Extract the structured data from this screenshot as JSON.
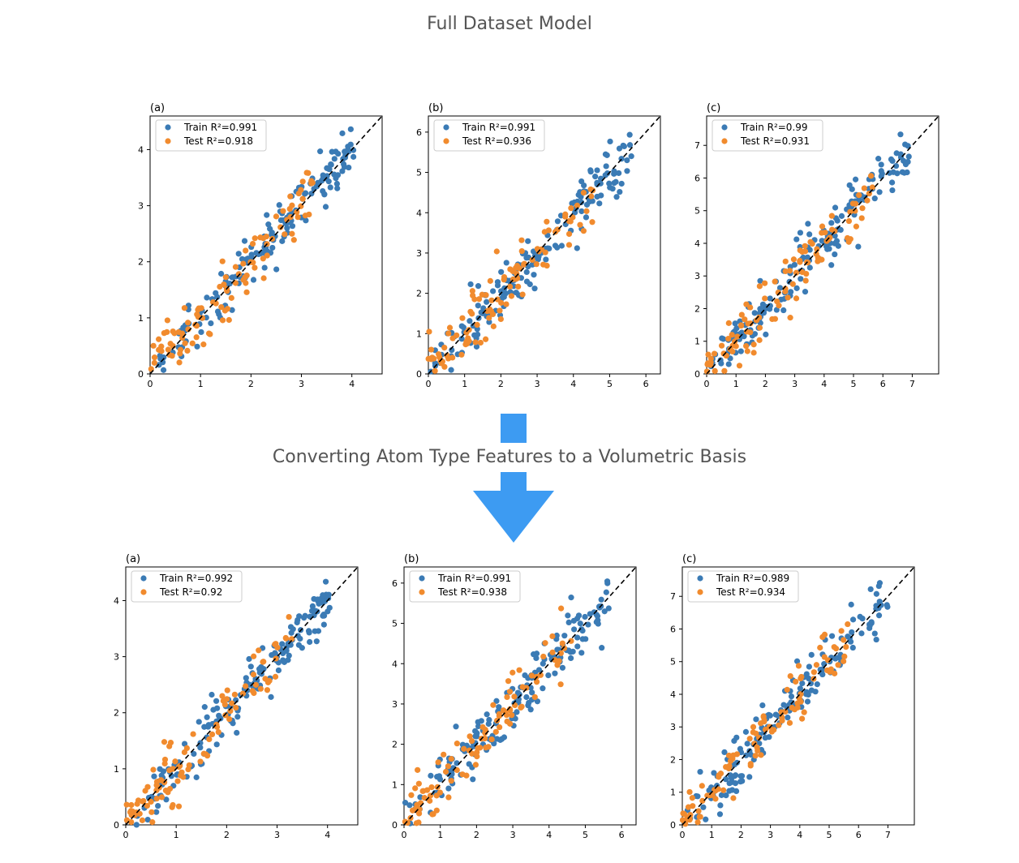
{
  "header": {
    "title": "Full Dataset Model",
    "subtitle": "Converting Atom Type Features to a Volumetric Basis"
  },
  "colors": {
    "train": "#3b7bb5",
    "test": "#f18b2e",
    "arrow": "#3d9bf2",
    "heading": "#555555"
  },
  "chart_data": [
    {
      "type": "scatter",
      "group": "top",
      "label": "(a)",
      "xlim": [
        0,
        4.6
      ],
      "ylim": [
        0,
        4.6
      ],
      "xticks": [
        0,
        1,
        2,
        3,
        4
      ],
      "yticks": [
        0,
        1,
        2,
        3,
        4
      ],
      "grid": false,
      "legend": "top-left",
      "diagonal": "y=x",
      "series": [
        {
          "name": "Train R²=0.991"
        },
        {
          "name": "Test R²=0.918"
        }
      ]
    },
    {
      "type": "scatter",
      "group": "top",
      "label": "(b)",
      "xlim": [
        0,
        6.4
      ],
      "ylim": [
        0,
        6.4
      ],
      "xticks": [
        0,
        1,
        2,
        3,
        4,
        5,
        6
      ],
      "yticks": [
        0,
        1,
        2,
        3,
        4,
        5,
        6
      ],
      "grid": false,
      "legend": "top-left",
      "diagonal": "y=x",
      "series": [
        {
          "name": "Train R²=0.991"
        },
        {
          "name": "Test R²=0.936"
        }
      ]
    },
    {
      "type": "scatter",
      "group": "top",
      "label": "(c)",
      "xlim": [
        0,
        7.9
      ],
      "ylim": [
        0,
        7.9
      ],
      "xticks": [
        0,
        1,
        2,
        3,
        4,
        5,
        6,
        7
      ],
      "yticks": [
        0,
        1,
        2,
        3,
        4,
        5,
        6,
        7
      ],
      "grid": false,
      "legend": "top-left",
      "diagonal": "y=x",
      "series": [
        {
          "name": "Train R²=0.99"
        },
        {
          "name": "Test R²=0.931"
        }
      ]
    },
    {
      "type": "scatter",
      "group": "bottom",
      "label": "(a)",
      "xlim": [
        0,
        4.6
      ],
      "ylim": [
        0,
        4.6
      ],
      "xticks": [
        0,
        1,
        2,
        3,
        4
      ],
      "yticks": [
        0,
        1,
        2,
        3,
        4
      ],
      "grid": false,
      "legend": "top-left",
      "diagonal": "y=x",
      "series": [
        {
          "name": "Train R²=0.992"
        },
        {
          "name": "Test R²=0.92"
        }
      ]
    },
    {
      "type": "scatter",
      "group": "bottom",
      "label": "(b)",
      "xlim": [
        0,
        6.4
      ],
      "ylim": [
        0,
        6.4
      ],
      "xticks": [
        0,
        1,
        2,
        3,
        4,
        5,
        6
      ],
      "yticks": [
        0,
        1,
        2,
        3,
        4,
        5,
        6
      ],
      "grid": false,
      "legend": "top-left",
      "diagonal": "y=x",
      "series": [
        {
          "name": "Train R²=0.991"
        },
        {
          "name": "Test R²=0.938"
        }
      ]
    },
    {
      "type": "scatter",
      "group": "bottom",
      "label": "(c)",
      "xlim": [
        0,
        7.9
      ],
      "ylim": [
        0,
        7.9
      ],
      "xticks": [
        0,
        1,
        2,
        3,
        4,
        5,
        6,
        7
      ],
      "yticks": [
        0,
        1,
        2,
        3,
        4,
        5,
        6,
        7
      ],
      "grid": false,
      "legend": "top-left",
      "diagonal": "y=x",
      "series": [
        {
          "name": "Train R²=0.989"
        },
        {
          "name": "Test R²=0.934"
        }
      ]
    }
  ]
}
